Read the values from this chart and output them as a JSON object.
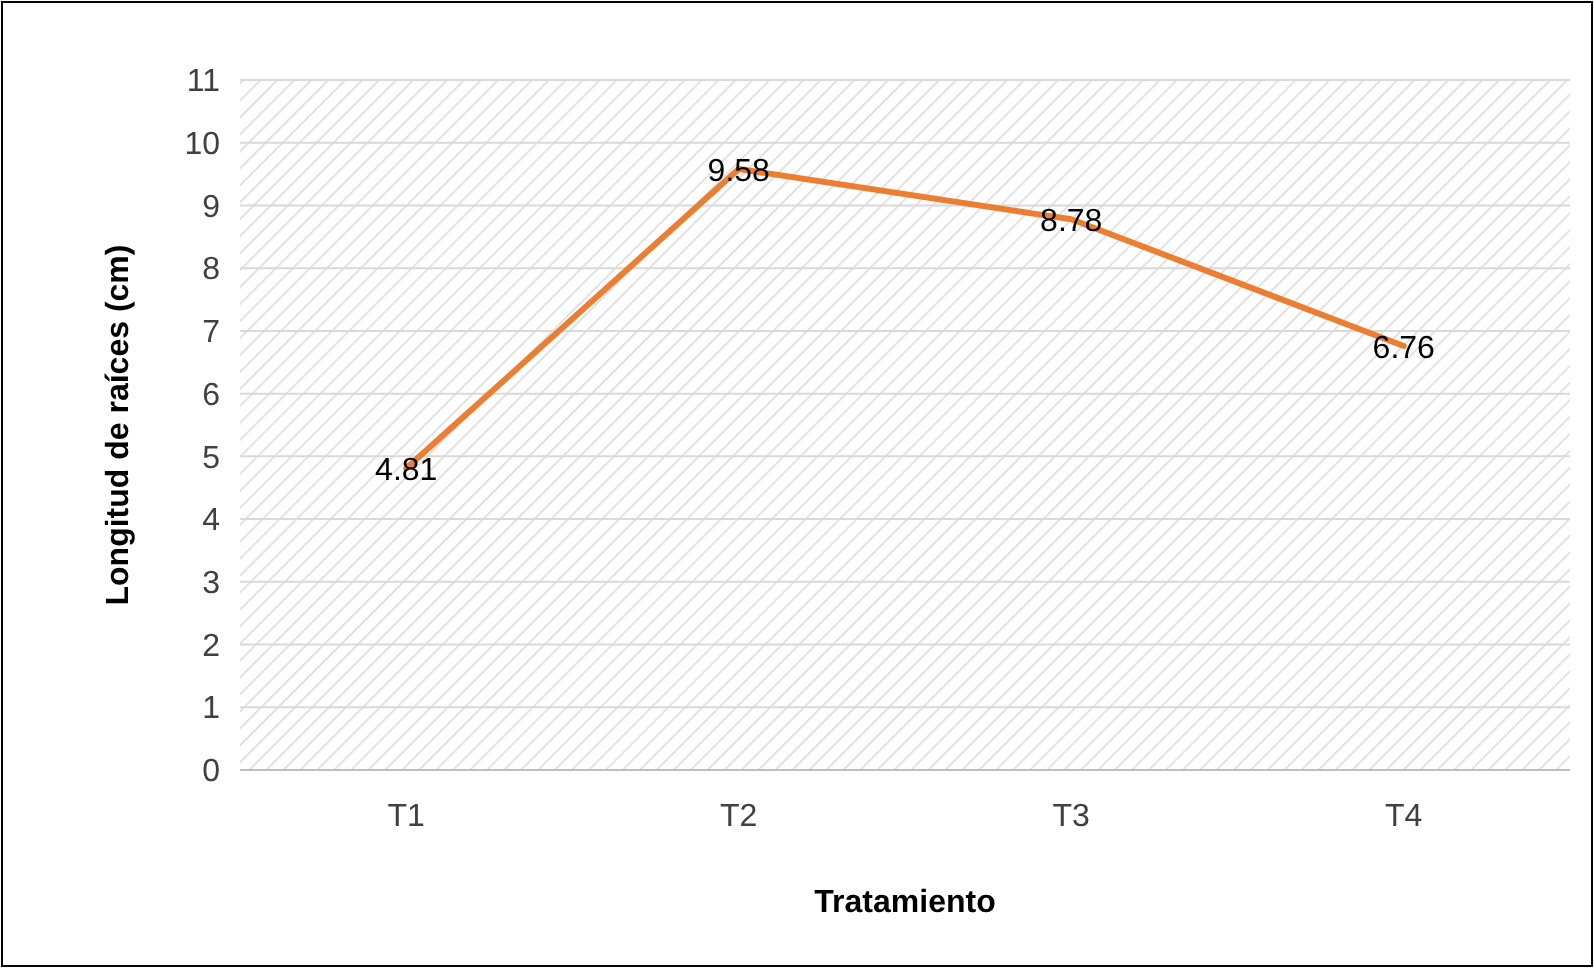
{
  "chart_data": {
    "type": "line",
    "xlabel": "Tratamiento",
    "ylabel": "Longitud de raíces (cm)",
    "categories": [
      "T1",
      "T2",
      "T3",
      "T4"
    ],
    "series": [
      {
        "color": "#ed7d31",
        "values": [
          4.81,
          9.58,
          8.78,
          6.76
        ]
      }
    ],
    "ylim": [
      0,
      11
    ],
    "yticks": [
      0,
      1,
      2,
      3,
      4,
      5,
      6,
      7,
      8,
      9,
      10,
      11
    ],
    "grid": "y",
    "data_labels": true,
    "marker": "none",
    "line_style": "solid"
  }
}
